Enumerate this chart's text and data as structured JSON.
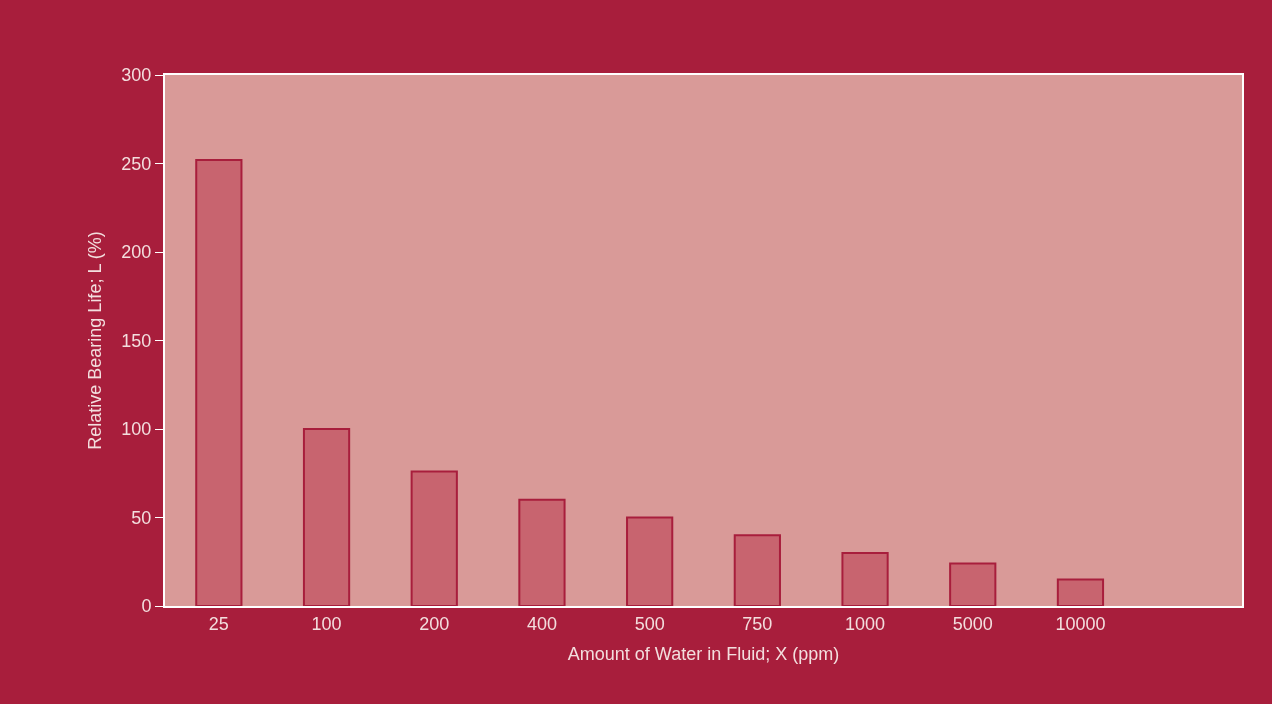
{
  "chart_data": {
    "type": "bar",
    "xlabel": "Amount of Water in Fluid; X (ppm)",
    "ylabel": "Relative Bearing Life; L (%)",
    "categories": [
      "25",
      "100",
      "200",
      "400",
      "500",
      "750",
      "1000",
      "5000",
      "10000"
    ],
    "values": [
      252,
      100,
      76,
      60,
      50,
      40,
      30,
      24,
      15
    ],
    "color": "#c8646f",
    "ylim": [
      0,
      300
    ],
    "yticks": [
      0,
      50,
      100,
      150,
      200,
      250,
      300
    ],
    "grid": false,
    "legend": false
  }
}
